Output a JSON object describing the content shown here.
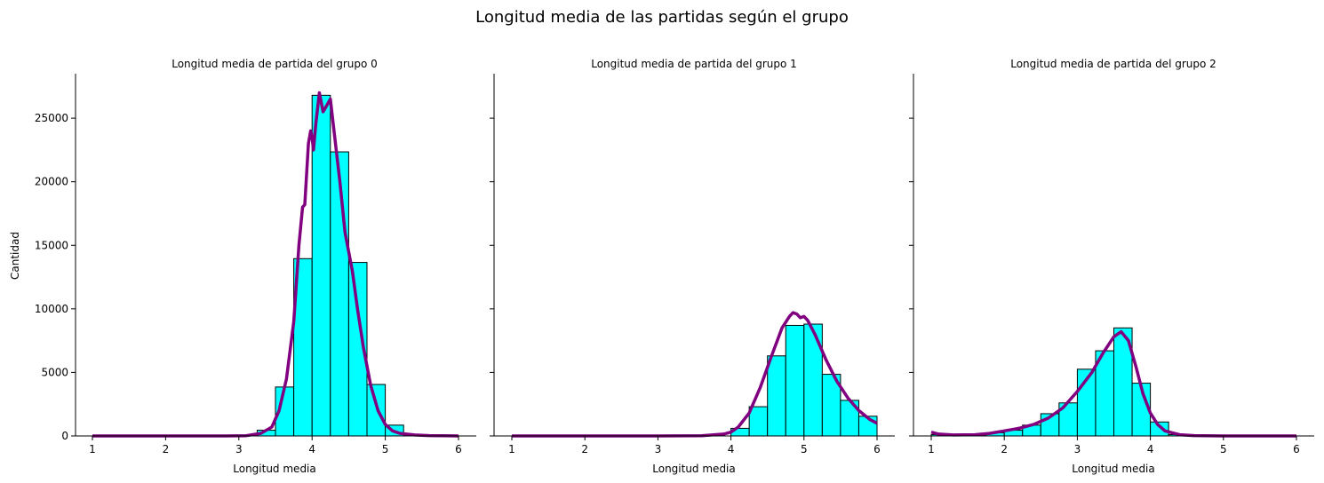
{
  "figure": {
    "suptitle": "Longitud media de las partidas según el grupo",
    "ylabel": "Cantidad"
  },
  "colors": {
    "bar_fill": "#00ffff",
    "bar_edge": "#000000",
    "kde_line": "#800080"
  },
  "chart_data": [
    {
      "type": "bar",
      "title": "Longitud media de partida del grupo 0",
      "xlabel": "Longitud media",
      "ylabel": "Cantidad",
      "xlim": [
        1,
        6
      ],
      "ylim": [
        0,
        28500
      ],
      "xticks": [
        1,
        2,
        3,
        4,
        5,
        6
      ],
      "yticks": [
        0,
        5000,
        10000,
        15000,
        20000,
        25000
      ],
      "bin_width": 0.25,
      "bins": [
        {
          "x0": 3.25,
          "count": 450
        },
        {
          "x0": 3.5,
          "count": 3850
        },
        {
          "x0": 3.75,
          "count": 13950
        },
        {
          "x0": 4.0,
          "count": 26800
        },
        {
          "x0": 4.25,
          "count": 22350
        },
        {
          "x0": 4.5,
          "count": 13650
        },
        {
          "x0": 4.75,
          "count": 4050
        },
        {
          "x0": 5.0,
          "count": 850
        },
        {
          "x0": 5.25,
          "count": 100
        }
      ],
      "kde": [
        [
          1,
          0
        ],
        [
          2,
          0
        ],
        [
          2.8,
          0
        ],
        [
          3.1,
          20
        ],
        [
          3.3,
          200
        ],
        [
          3.45,
          700
        ],
        [
          3.55,
          2000
        ],
        [
          3.65,
          4500
        ],
        [
          3.75,
          9000
        ],
        [
          3.82,
          15000
        ],
        [
          3.87,
          18000
        ],
        [
          3.9,
          18200
        ],
        [
          3.95,
          23000
        ],
        [
          3.98,
          24000
        ],
        [
          4.0,
          23500
        ],
        [
          4.02,
          22500
        ],
        [
          4.05,
          24500
        ],
        [
          4.1,
          27000
        ],
        [
          4.15,
          25500
        ],
        [
          4.2,
          26000
        ],
        [
          4.25,
          26500
        ],
        [
          4.3,
          24000
        ],
        [
          4.38,
          20000
        ],
        [
          4.45,
          16000
        ],
        [
          4.55,
          13000
        ],
        [
          4.62,
          10000
        ],
        [
          4.7,
          7000
        ],
        [
          4.8,
          4000
        ],
        [
          4.9,
          2000
        ],
        [
          5.0,
          900
        ],
        [
          5.1,
          400
        ],
        [
          5.2,
          200
        ],
        [
          5.4,
          80
        ],
        [
          5.6,
          30
        ],
        [
          6,
          0
        ]
      ]
    },
    {
      "type": "bar",
      "title": "Longitud media de partida del grupo 1",
      "xlabel": "Longitud media",
      "ylabel": "",
      "xlim": [
        1,
        6
      ],
      "ylim": [
        0,
        28500
      ],
      "xticks": [
        1,
        2,
        3,
        4,
        5,
        6
      ],
      "yticks": [
        0,
        5000,
        10000,
        15000,
        20000,
        25000
      ],
      "bin_width": 0.25,
      "bins": [
        {
          "x0": 4.0,
          "count": 600
        },
        {
          "x0": 4.25,
          "count": 2300
        },
        {
          "x0": 4.5,
          "count": 6300
        },
        {
          "x0": 4.75,
          "count": 8700
        },
        {
          "x0": 5.0,
          "count": 8800
        },
        {
          "x0": 5.25,
          "count": 4850
        },
        {
          "x0": 5.5,
          "count": 2800
        },
        {
          "x0": 5.75,
          "count": 1550
        }
      ],
      "kde": [
        [
          1,
          0
        ],
        [
          3,
          0
        ],
        [
          3.6,
          20
        ],
        [
          3.9,
          150
        ],
        [
          4.0,
          300
        ],
        [
          4.1,
          700
        ],
        [
          4.25,
          1800
        ],
        [
          4.4,
          3800
        ],
        [
          4.55,
          6200
        ],
        [
          4.7,
          8500
        ],
        [
          4.8,
          9400
        ],
        [
          4.85,
          9700
        ],
        [
          4.9,
          9600
        ],
        [
          4.95,
          9300
        ],
        [
          5.0,
          9400
        ],
        [
          5.05,
          9100
        ],
        [
          5.15,
          8000
        ],
        [
          5.3,
          6000
        ],
        [
          5.45,
          4300
        ],
        [
          5.6,
          3000
        ],
        [
          5.75,
          2000
        ],
        [
          5.9,
          1300
        ],
        [
          6.0,
          1000
        ]
      ]
    },
    {
      "type": "bar",
      "title": "Longitud media de partida del grupo 2",
      "xlabel": "Longitud media",
      "ylabel": "",
      "xlim": [
        1,
        6
      ],
      "ylim": [
        0,
        28500
      ],
      "xticks": [
        1,
        2,
        3,
        4,
        5,
        6
      ],
      "yticks": [
        0,
        5000,
        10000,
        15000,
        20000,
        25000
      ],
      "bin_width": 0.25,
      "bins": [
        {
          "x0": 1.0,
          "count": 100
        },
        {
          "x0": 1.25,
          "count": 60
        },
        {
          "x0": 1.5,
          "count": 80
        },
        {
          "x0": 1.75,
          "count": 250
        },
        {
          "x0": 2.0,
          "count": 450
        },
        {
          "x0": 2.25,
          "count": 850
        },
        {
          "x0": 2.5,
          "count": 1750
        },
        {
          "x0": 2.75,
          "count": 2600
        },
        {
          "x0": 3.0,
          "count": 5250
        },
        {
          "x0": 3.25,
          "count": 6700
        },
        {
          "x0": 3.5,
          "count": 8500
        },
        {
          "x0": 3.75,
          "count": 4150
        },
        {
          "x0": 4.0,
          "count": 1100
        },
        {
          "x0": 4.25,
          "count": 100
        }
      ],
      "kde": [
        [
          1,
          300
        ],
        [
          1.1,
          150
        ],
        [
          1.3,
          80
        ],
        [
          1.6,
          100
        ],
        [
          1.8,
          200
        ],
        [
          2.0,
          400
        ],
        [
          2.2,
          600
        ],
        [
          2.4,
          900
        ],
        [
          2.6,
          1400
        ],
        [
          2.8,
          2200
        ],
        [
          3.0,
          3500
        ],
        [
          3.2,
          5000
        ],
        [
          3.35,
          6500
        ],
        [
          3.5,
          7800
        ],
        [
          3.6,
          8200
        ],
        [
          3.7,
          7500
        ],
        [
          3.8,
          5500
        ],
        [
          3.9,
          3300
        ],
        [
          4.0,
          1800
        ],
        [
          4.1,
          900
        ],
        [
          4.2,
          400
        ],
        [
          4.4,
          100
        ],
        [
          4.6,
          30
        ],
        [
          5,
          0
        ],
        [
          6,
          0
        ]
      ]
    }
  ]
}
